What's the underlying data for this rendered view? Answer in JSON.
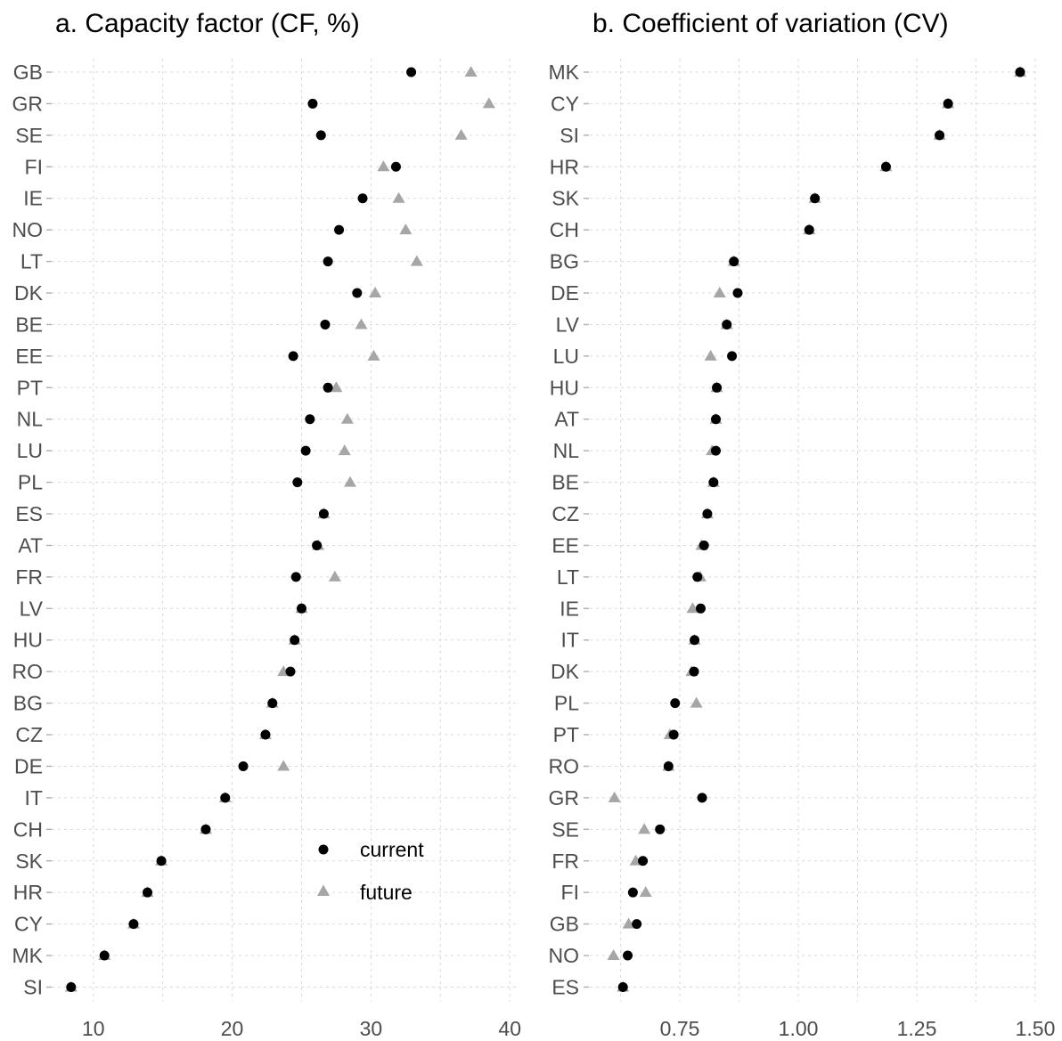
{
  "colors": {
    "current": "#000000",
    "future": "#a6a6a6",
    "grid": "#d9d9d9",
    "text": "#4d4d4d"
  },
  "chart_data": [
    {
      "type": "scatter",
      "title": "a. Capacity factor (CF, %)",
      "xlabel": "",
      "ylabel": "",
      "xlim": [
        7,
        40.5
      ],
      "xticks": [
        10,
        20,
        30,
        40
      ],
      "xtick_labels": [
        "10",
        "20",
        "30",
        "40"
      ],
      "grid": true,
      "legend": {
        "placement": "bottom-right",
        "entries": [
          "current",
          "future"
        ]
      },
      "categories": [
        "GB",
        "GR",
        "SE",
        "FI",
        "IE",
        "NO",
        "LT",
        "DK",
        "BE",
        "EE",
        "PT",
        "NL",
        "LU",
        "PL",
        "ES",
        "AT",
        "FR",
        "LV",
        "HU",
        "RO",
        "BG",
        "CZ",
        "DE",
        "IT",
        "CH",
        "SK",
        "HR",
        "CY",
        "MK",
        "SI"
      ],
      "series": [
        {
          "name": "current",
          "marker": "circle",
          "values": [
            32.9,
            25.8,
            26.4,
            31.8,
            29.4,
            27.7,
            26.9,
            29.0,
            26.7,
            24.4,
            26.9,
            25.6,
            25.3,
            24.7,
            26.6,
            26.1,
            24.6,
            25.0,
            24.5,
            24.2,
            22.9,
            22.4,
            20.8,
            19.5,
            18.1,
            14.9,
            13.9,
            12.9,
            10.8,
            8.4
          ]
        },
        {
          "name": "future",
          "marker": "triangle",
          "values": [
            37.2,
            38.5,
            36.5,
            30.9,
            32.0,
            32.5,
            33.3,
            30.3,
            29.3,
            30.2,
            27.5,
            28.3,
            28.1,
            28.5,
            26.6,
            26.2,
            27.4,
            25.0,
            24.5,
            23.7,
            22.9,
            22.4,
            23.7,
            19.5,
            18.1,
            14.9,
            13.9,
            12.9,
            10.8,
            8.4
          ]
        }
      ]
    },
    {
      "type": "scatter",
      "title": "b. Coefficient of variation (CV)",
      "xlabel": "",
      "ylabel": "",
      "xlim": [
        0.56,
        1.5
      ],
      "xticks": [
        0.75,
        1.0,
        1.25,
        1.5
      ],
      "xtick_labels": [
        "0.75",
        "1.00",
        "1.25",
        "1.50"
      ],
      "grid": true,
      "categories": [
        "MK",
        "CY",
        "SI",
        "HR",
        "SK",
        "CH",
        "BG",
        "DE",
        "LV",
        "LU",
        "HU",
        "AT",
        "NL",
        "BE",
        "CZ",
        "EE",
        "LT",
        "IE",
        "IT",
        "DK",
        "PL",
        "PT",
        "RO",
        "GR",
        "SE",
        "FR",
        "FI",
        "GB",
        "NO",
        "ES"
      ],
      "series": [
        {
          "name": "current",
          "marker": "circle",
          "values": [
            1.468,
            1.316,
            1.298,
            1.185,
            1.035,
            1.023,
            0.864,
            0.872,
            0.849,
            0.86,
            0.828,
            0.826,
            0.826,
            0.821,
            0.808,
            0.801,
            0.787,
            0.794,
            0.781,
            0.78,
            0.74,
            0.737,
            0.726,
            0.797,
            0.708,
            0.672,
            0.651,
            0.659,
            0.64,
            0.63
          ]
        },
        {
          "name": "future",
          "marker": "triangle",
          "values": [
            1.468,
            1.316,
            1.298,
            1.185,
            1.035,
            1.023,
            0.864,
            0.834,
            0.849,
            0.815,
            0.828,
            0.826,
            0.818,
            0.821,
            0.808,
            0.796,
            0.793,
            0.777,
            0.781,
            0.775,
            0.785,
            0.729,
            0.726,
            0.612,
            0.675,
            0.657,
            0.678,
            0.642,
            0.61,
            0.63
          ]
        }
      ]
    }
  ]
}
